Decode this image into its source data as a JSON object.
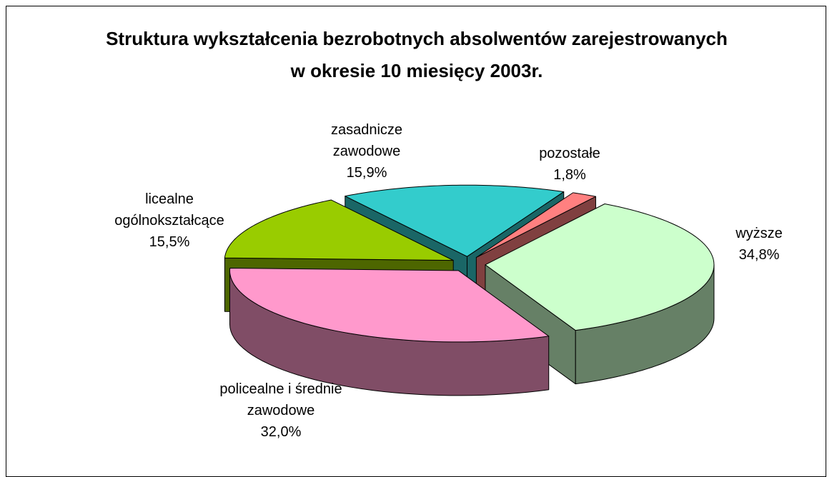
{
  "chart_data": {
    "type": "pie",
    "title": "Struktura wykształcenia bezrobotnych absolwentów zarejestrowanych w okresie 10 miesięcy 2003r.",
    "categories": [
      "pozostałe",
      "wyższe",
      "policealne i średnie zawodowe",
      "licealne ogólnokształcące",
      "zasadnicze zawodowe"
    ],
    "values": [
      1.8,
      34.8,
      32.0,
      15.5,
      15.9
    ],
    "value_labels": [
      "1,8%",
      "34,8%",
      "32,0%",
      "15,5%",
      "15,9%"
    ],
    "colors": [
      "#ff8080",
      "#ccffcc",
      "#ff99cc",
      "#99cc00",
      "#33cccc"
    ]
  }
}
